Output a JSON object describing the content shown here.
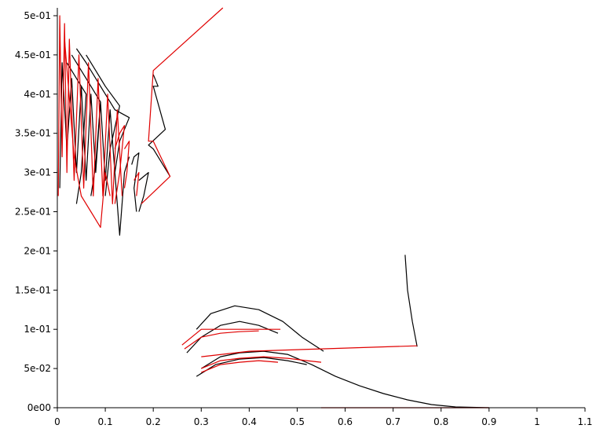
{
  "chart_data": {
    "type": "line",
    "title": "",
    "xlabel": "",
    "ylabel": "",
    "xlim": [
      0,
      1.1
    ],
    "ylim": [
      0,
      0.51
    ],
    "grid": false,
    "legend": "none",
    "x_ticks": [
      {
        "value": 0,
        "label": "0"
      },
      {
        "value": 0.1,
        "label": "0.1"
      },
      {
        "value": 0.2,
        "label": "0.2"
      },
      {
        "value": 0.3,
        "label": "0.3"
      },
      {
        "value": 0.4,
        "label": "0.4"
      },
      {
        "value": 0.5,
        "label": "0.5"
      },
      {
        "value": 0.6,
        "label": "0.6"
      },
      {
        "value": 0.7,
        "label": "0.7"
      },
      {
        "value": 0.8,
        "label": "0.8"
      },
      {
        "value": 0.9,
        "label": "0.9"
      },
      {
        "value": 1,
        "label": "1"
      },
      {
        "value": 1.1,
        "label": "1.1"
      }
    ],
    "y_ticks": [
      {
        "value": 0,
        "label": "0e00"
      },
      {
        "value": 0.05,
        "label": "5e-02"
      },
      {
        "value": 0.1,
        "label": "1e-01"
      },
      {
        "value": 0.15,
        "label": "1.5e-01"
      },
      {
        "value": 0.2,
        "label": "2e-01"
      },
      {
        "value": 0.25,
        "label": "2.5e-01"
      },
      {
        "value": 0.3,
        "label": "3e-01"
      },
      {
        "value": 0.35,
        "label": "3.5e-01"
      },
      {
        "value": 0.4,
        "label": "4e-01"
      },
      {
        "value": 0.45,
        "label": "4.5e-01"
      },
      {
        "value": 0.5,
        "label": "5e-01"
      }
    ],
    "series": [
      {
        "color": "#000000",
        "paths": [
          [
            [
              0.005,
              0.28
            ],
            [
              0.01,
              0.44
            ],
            [
              0.02,
              0.33
            ],
            [
              0.03,
              0.42
            ],
            [
              0.04,
              0.3
            ],
            [
              0.05,
              0.41
            ],
            [
              0.06,
              0.29
            ],
            [
              0.07,
              0.4
            ],
            [
              0.08,
              0.3
            ],
            [
              0.09,
              0.39
            ],
            [
              0.1,
              0.29
            ],
            [
              0.11,
              0.38
            ],
            [
              0.12,
              0.3
            ]
          ],
          [
            [
              0.04,
              0.458
            ],
            [
              0.06,
              0.44
            ],
            [
              0.08,
              0.42
            ],
            [
              0.1,
              0.4
            ],
            [
              0.12,
              0.38
            ],
            [
              0.15,
              0.37
            ],
            [
              0.13,
              0.34
            ],
            [
              0.12,
              0.3
            ],
            [
              0.13,
              0.22
            ],
            [
              0.14,
              0.3
            ],
            [
              0.15,
              0.32
            ]
          ],
          [
            [
              0.06,
              0.45
            ],
            [
              0.08,
              0.43
            ],
            [
              0.1,
              0.41
            ],
            [
              0.13,
              0.385
            ],
            [
              0.11,
              0.33
            ],
            [
              0.1,
              0.27
            ]
          ],
          [
            [
              0.03,
              0.45
            ],
            [
              0.05,
              0.43
            ],
            [
              0.07,
              0.41
            ],
            [
              0.09,
              0.39
            ],
            [
              0.08,
              0.31
            ],
            [
              0.07,
              0.27
            ]
          ],
          [
            [
              0.02,
              0.44
            ],
            [
              0.04,
              0.42
            ],
            [
              0.06,
              0.4
            ],
            [
              0.05,
              0.3
            ],
            [
              0.04,
              0.26
            ]
          ],
          [
            [
              0.155,
              0.31
            ],
            [
              0.16,
              0.32
            ],
            [
              0.17,
              0.325
            ],
            [
              0.16,
              0.28
            ],
            [
              0.165,
              0.25
            ]
          ],
          [
            [
              0.17,
              0.29
            ],
            [
              0.19,
              0.3
            ],
            [
              0.18,
              0.27
            ],
            [
              0.17,
              0.25
            ]
          ],
          [
            [
              0.2,
              0.425
            ],
            [
              0.21,
              0.41
            ],
            [
              0.2,
              0.41
            ],
            [
              0.225,
              0.355
            ],
            [
              0.19,
              0.335
            ],
            [
              0.2,
              0.33
            ],
            [
              0.235,
              0.295
            ]
          ],
          [
            [
              0.725,
              0.195
            ],
            [
              0.73,
              0.15
            ],
            [
              0.74,
              0.11
            ],
            [
              0.75,
              0.078
            ]
          ],
          [
            [
              0.29,
              0.1
            ],
            [
              0.32,
              0.12
            ],
            [
              0.37,
              0.13
            ],
            [
              0.42,
              0.125
            ],
            [
              0.47,
              0.11
            ],
            [
              0.51,
              0.09
            ],
            [
              0.555,
              0.072
            ]
          ],
          [
            [
              0.27,
              0.07
            ],
            [
              0.3,
              0.09
            ],
            [
              0.34,
              0.105
            ],
            [
              0.38,
              0.11
            ],
            [
              0.42,
              0.105
            ],
            [
              0.46,
              0.095
            ]
          ],
          [
            [
              0.3,
              0.05
            ],
            [
              0.34,
              0.065
            ],
            [
              0.38,
              0.07
            ],
            [
              0.43,
              0.072
            ],
            [
              0.48,
              0.068
            ],
            [
              0.53,
              0.055
            ],
            [
              0.58,
              0.04
            ],
            [
              0.63,
              0.028
            ],
            [
              0.68,
              0.018
            ],
            [
              0.73,
              0.01
            ],
            [
              0.78,
              0.004
            ],
            [
              0.83,
              0.001
            ],
            [
              0.9,
              0
            ]
          ],
          [
            [
              0.29,
              0.04
            ],
            [
              0.33,
              0.055
            ],
            [
              0.38,
              0.062
            ],
            [
              0.43,
              0.064
            ],
            [
              0.48,
              0.06
            ],
            [
              0.52,
              0.055
            ]
          ]
        ]
      },
      {
        "color": "#e00000",
        "paths": [
          [
            [
              0.002,
              0.27
            ],
            [
              0.005,
              0.5
            ],
            [
              0.01,
              0.32
            ],
            [
              0.015,
              0.49
            ],
            [
              0.02,
              0.3
            ],
            [
              0.025,
              0.47
            ],
            [
              0.035,
              0.29
            ],
            [
              0.045,
              0.45
            ],
            [
              0.055,
              0.28
            ],
            [
              0.065,
              0.44
            ],
            [
              0.075,
              0.27
            ],
            [
              0.085,
              0.42
            ],
            [
              0.095,
              0.27
            ],
            [
              0.105,
              0.4
            ],
            [
              0.115,
              0.26
            ],
            [
              0.125,
              0.38
            ],
            [
              0.135,
              0.27
            ]
          ],
          [
            [
              0.015,
              0.47
            ],
            [
              0.035,
              0.32
            ],
            [
              0.05,
              0.27
            ],
            [
              0.07,
              0.25
            ],
            [
              0.09,
              0.23
            ],
            [
              0.1,
              0.3
            ],
            [
              0.11,
              0.27
            ]
          ],
          [
            [
              0.12,
              0.33
            ],
            [
              0.13,
              0.35
            ],
            [
              0.14,
              0.36
            ],
            [
              0.13,
              0.3
            ],
            [
              0.12,
              0.26
            ]
          ],
          [
            [
              0.14,
              0.33
            ],
            [
              0.15,
              0.34
            ],
            [
              0.145,
              0.3
            ],
            [
              0.14,
              0.28
            ]
          ],
          [
            [
              0.16,
              0.29
            ],
            [
              0.17,
              0.3
            ],
            [
              0.165,
              0.27
            ]
          ],
          [
            [
              0.175,
              0.26
            ],
            [
              0.235,
              0.295
            ],
            [
              0.2,
              0.34
            ],
            [
              0.19,
              0.34
            ],
            [
              0.2,
              0.43
            ],
            [
              0.345,
              0.51
            ]
          ],
          [
            [
              0.3,
              0.065
            ],
            [
              0.4,
              0.072
            ],
            [
              0.55,
              0.075
            ],
            [
              0.75,
              0.079
            ]
          ],
          [
            [
              0.26,
              0.08
            ],
            [
              0.3,
              0.1
            ],
            [
              0.34,
              0.1
            ],
            [
              0.38,
              0.1
            ],
            [
              0.42,
              0.1
            ],
            [
              0.465,
              0.1
            ]
          ],
          [
            [
              0.265,
              0.075
            ],
            [
              0.3,
              0.09
            ],
            [
              0.34,
              0.095
            ],
            [
              0.38,
              0.097
            ],
            [
              0.42,
              0.098
            ]
          ],
          [
            [
              0.3,
              0.05
            ],
            [
              0.34,
              0.06
            ],
            [
              0.38,
              0.063
            ],
            [
              0.43,
              0.065
            ],
            [
              0.48,
              0.063
            ],
            [
              0.52,
              0.06
            ],
            [
              0.55,
              0.058
            ]
          ],
          [
            [
              0.3,
              0.045
            ],
            [
              0.34,
              0.055
            ],
            [
              0.38,
              0.058
            ],
            [
              0.42,
              0.06
            ],
            [
              0.46,
              0.058
            ]
          ],
          [
            [
              0.55,
              0.0
            ],
            [
              0.7,
              0.0
            ],
            [
              0.8,
              0.0
            ],
            [
              0.9,
              0.0
            ]
          ]
        ]
      }
    ]
  }
}
